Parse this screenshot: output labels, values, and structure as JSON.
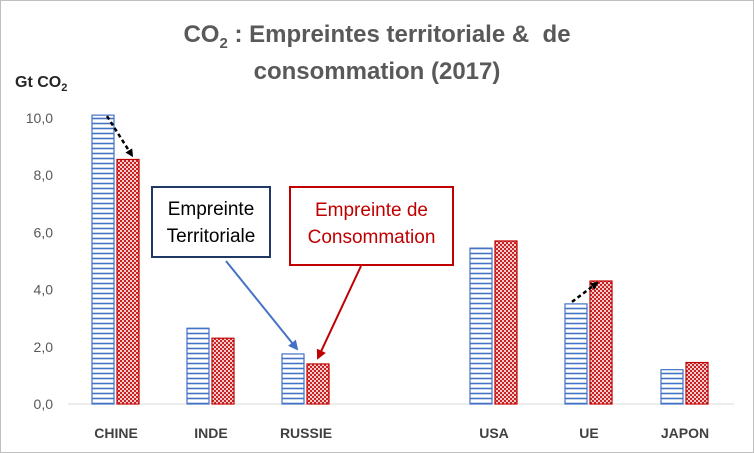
{
  "chart_data": {
    "type": "bar",
    "title_main": "CO",
    "title_sub": "2",
    "title_rest": " : Empreintes territoriale &  de",
    "title_line2": "consommation (2017)",
    "ylabel_main": "Gt CO",
    "ylabel_sub": "2",
    "ylim": [
      0,
      10
    ],
    "yticks": [
      "0,0",
      "2,0",
      "4,0",
      "6,0",
      "8,0",
      "10,0"
    ],
    "categories": [
      "CHINE",
      "INDE",
      "RUSSIE",
      "USA",
      "UE",
      "JAPON"
    ],
    "series": [
      {
        "name": "Empreinte Territoriale",
        "values": [
          10.1,
          2.65,
          1.75,
          5.45,
          3.5,
          1.2
        ],
        "color": "#4472c4",
        "pattern": "horizontal-lines"
      },
      {
        "name": "Empreinte de Consommation",
        "values": [
          8.55,
          2.3,
          1.4,
          5.7,
          4.3,
          1.45
        ],
        "color": "#c00000",
        "pattern": "crosshatch"
      }
    ],
    "annotations": {
      "territorial_label_line1": "Empreinte",
      "territorial_label_line2": "Territoriale",
      "consommation_label_line1": "Empreinte de",
      "consommation_label_line2": "Consommation"
    },
    "grid": false
  }
}
